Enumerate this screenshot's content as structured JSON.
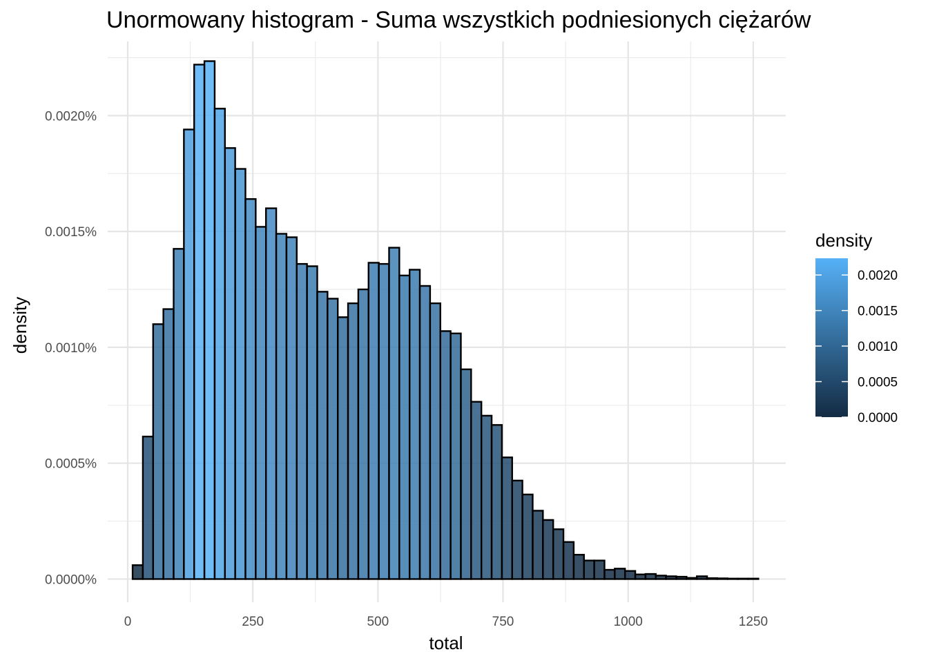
{
  "chart_data": {
    "type": "bar",
    "title": "Unormowany histogram - Suma wszystkich podniesionych ciężarów",
    "xlabel": "total",
    "ylabel": "density",
    "xlim": [
      -40,
      1315
    ],
    "ylim": [
      -0.0001,
      0.00232
    ],
    "x_ticks": [
      0,
      250,
      500,
      750,
      1000,
      1250
    ],
    "x_tick_labels": [
      "0",
      "250",
      "500",
      "750",
      "1000",
      "1250"
    ],
    "y_ticks": [
      0,
      0.0005,
      0.001,
      0.0015,
      0.002
    ],
    "y_tick_labels": [
      "0.0000%",
      "0.0005%",
      "0.0010%",
      "0.0015%",
      "0.0020%"
    ],
    "bin_width": 20.5,
    "bin_centers": [
      20,
      40.5,
      61,
      81.5,
      102,
      122.5,
      143,
      163.5,
      184,
      204.5,
      225,
      245.5,
      266,
      286.5,
      307,
      327.5,
      348,
      368.5,
      389,
      409.5,
      430,
      450.5,
      471,
      491.5,
      512,
      532.5,
      553,
      573.5,
      594,
      614.5,
      635,
      655.5,
      676,
      696.5,
      717,
      737.5,
      758,
      778.5,
      799,
      819.5,
      840,
      860.5,
      881,
      901.5,
      922,
      942.5,
      963,
      983.5,
      1004,
      1024.5,
      1045,
      1065.5,
      1086,
      1106.5,
      1127,
      1147.5,
      1168,
      1188.5,
      1209,
      1229.5,
      1250
    ],
    "values": [
      6e-05,
      0.000615,
      0.0011,
      0.001165,
      0.001425,
      0.00194,
      0.00222,
      0.002235,
      0.00203,
      0.00186,
      0.00177,
      0.00164,
      0.00152,
      0.0016,
      0.00149,
      0.001475,
      0.00136,
      0.00135,
      0.00124,
      0.00121,
      0.00113,
      0.00119,
      0.00125,
      0.001365,
      0.00136,
      0.00143,
      0.00131,
      0.001335,
      0.001265,
      0.00119,
      0.00107,
      0.00106,
      0.000905,
      0.000765,
      0.000705,
      0.000665,
      0.000525,
      0.000425,
      0.000365,
      0.000295,
      0.000255,
      0.000215,
      0.00016,
      0.000105,
      8e-05,
      8e-05,
      4e-05,
      4.5e-05,
      3.5e-05,
      2e-05,
      2.2e-05,
      1.5e-05,
      1.2e-05,
      1e-05,
      5e-06,
      1.2e-05,
      4e-06,
      3e-06,
      2e-06,
      2e-06,
      2e-06
    ],
    "fill_scale": {
      "low": "#132B43",
      "high": "#56B1F7",
      "min": 0,
      "max": 0.002235
    },
    "bar_alpha": 0.85,
    "outline_color": "#000000",
    "grid": true,
    "legend": {
      "title": "density",
      "placement": "right",
      "breaks": [
        0,
        0.0005,
        0.001,
        0.0015,
        0.002
      ],
      "labels": [
        "0.0000",
        "0.0005",
        "0.0010",
        "0.0015",
        "0.0020"
      ]
    }
  }
}
